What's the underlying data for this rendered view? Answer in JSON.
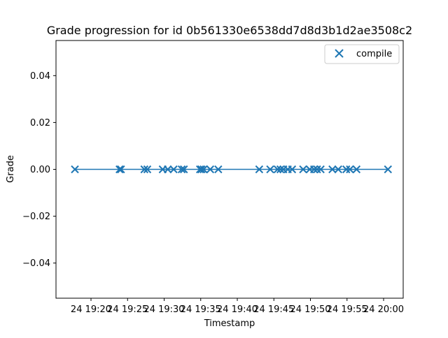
{
  "chart_data": {
    "type": "scatter",
    "title": "Grade progression for id 0b561330e6538dd7d8d3b1d2ae3508c2",
    "xlabel": "Timestamp",
    "ylabel": "Grade",
    "x_tick_labels": [
      "24 19:20",
      "24 19:25",
      "24 19:30",
      "24 19:35",
      "24 19:40",
      "24 19:45",
      "24 19:50",
      "24 19:55",
      "24 20:00"
    ],
    "y_ticks": [
      -0.04,
      -0.02,
      0.0,
      0.02,
      0.04
    ],
    "y_tick_labels": [
      "−0.04",
      "−0.02",
      "0.00",
      "0.02",
      "0.04"
    ],
    "ylim": [
      -0.055,
      0.055
    ],
    "legend": {
      "position": "top-right",
      "entries": [
        "compile"
      ]
    },
    "colors": {
      "series": "#1f77b4",
      "axes": "#000000",
      "legend_border": "#cccccc"
    },
    "series": [
      {
        "name": "compile",
        "marker": "x",
        "connected_by_line": true,
        "points": [
          {
            "x": "19:17:48",
            "y": 0.0
          },
          {
            "x": "19:23:54",
            "y": 0.0
          },
          {
            "x": "19:24:06",
            "y": 0.0
          },
          {
            "x": "19:27:18",
            "y": 0.0
          },
          {
            "x": "19:27:42",
            "y": 0.0
          },
          {
            "x": "19:29:48",
            "y": 0.0
          },
          {
            "x": "19:30:30",
            "y": 0.0
          },
          {
            "x": "19:31:18",
            "y": 0.0
          },
          {
            "x": "19:32:24",
            "y": 0.0
          },
          {
            "x": "19:32:42",
            "y": 0.0
          },
          {
            "x": "19:34:54",
            "y": 0.0
          },
          {
            "x": "19:35:06",
            "y": 0.0
          },
          {
            "x": "19:35:24",
            "y": 0.0
          },
          {
            "x": "19:36:18",
            "y": 0.0
          },
          {
            "x": "19:37:24",
            "y": 0.0
          },
          {
            "x": "19:43:00",
            "y": 0.0
          },
          {
            "x": "19:44:30",
            "y": 0.0
          },
          {
            "x": "19:45:30",
            "y": 0.0
          },
          {
            "x": "19:45:54",
            "y": 0.0
          },
          {
            "x": "19:46:18",
            "y": 0.0
          },
          {
            "x": "19:46:54",
            "y": 0.0
          },
          {
            "x": "19:47:30",
            "y": 0.0
          },
          {
            "x": "19:49:00",
            "y": 0.0
          },
          {
            "x": "19:49:54",
            "y": 0.0
          },
          {
            "x": "19:50:30",
            "y": 0.0
          },
          {
            "x": "19:50:54",
            "y": 0.0
          },
          {
            "x": "19:51:24",
            "y": 0.0
          },
          {
            "x": "19:53:00",
            "y": 0.0
          },
          {
            "x": "19:53:48",
            "y": 0.0
          },
          {
            "x": "19:54:54",
            "y": 0.0
          },
          {
            "x": "19:55:24",
            "y": 0.0
          },
          {
            "x": "19:56:18",
            "y": 0.0
          },
          {
            "x": "20:00:36",
            "y": 0.0
          }
        ]
      }
    ]
  }
}
